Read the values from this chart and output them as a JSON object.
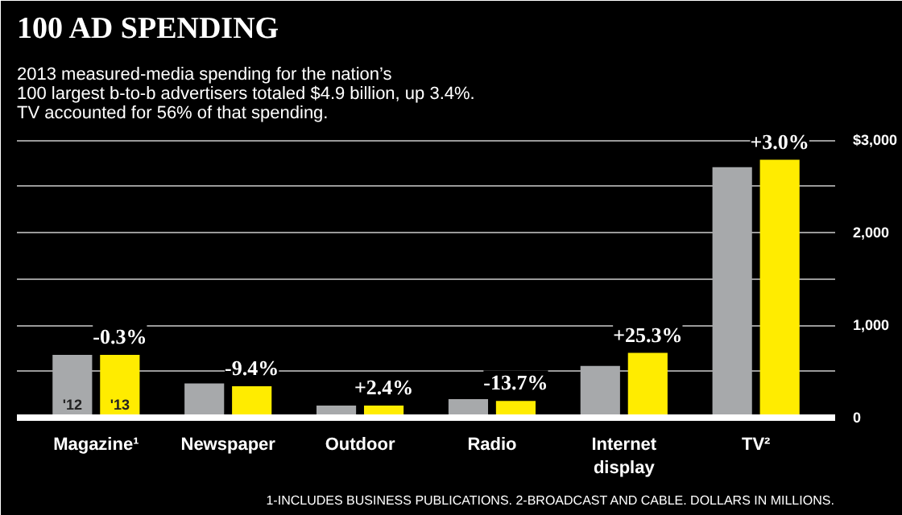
{
  "chart_data": {
    "type": "bar",
    "title": "100 AD SPENDING",
    "subtitle": "2013 measured-media spending for the nation’s\n100 largest b-to-b advertisers totaled $4.9 billion, up 3.4%.\nTV accounted for 56% of that spending.",
    "categories": [
      "Magazine¹",
      "Newspaper",
      "Outdoor",
      "Radio",
      "Internet\ndisplay",
      "TV²"
    ],
    "series": [
      {
        "name": "'12",
        "color": "#a7a9ab",
        "values": [
          680,
          370,
          130,
          200,
          560,
          2710
        ]
      },
      {
        "name": "'13",
        "color": "#ffec00",
        "values": [
          680,
          340,
          130,
          180,
          700,
          2790
        ]
      }
    ],
    "ylim": [
      0,
      3100
    ],
    "yticks": [
      0,
      {
        "value": 500,
        "label": null
      },
      {
        "value": 1000,
        "label": "1,000"
      },
      {
        "value": 1500,
        "label": null
      },
      {
        "value": 2000,
        "label": "2,000"
      },
      {
        "value": 2500,
        "label": null
      },
      {
        "value": 3000,
        "label": "$3,000"
      }
    ],
    "grid": "y",
    "annotations": [
      {
        "text": "-0.3%",
        "x": "Magazine¹",
        "y": 680
      },
      {
        "text": "-9.4%",
        "x": "Newspaper",
        "y": 340
      },
      {
        "text": "+2.4%",
        "x": "Outdoor",
        "y": 130
      },
      {
        "text": "-13.7%",
        "x": "Radio",
        "y": 180
      },
      {
        "text": "+25.3%",
        "x": "Internet\ndisplay",
        "y": 700
      },
      {
        "text": "+3.0%",
        "x": "TV²",
        "y": 2790
      },
      "1-INCLUDES BUSINESS PUBLICATIONS. 2-BROADCAST AND CABLE. DOLLARS IN MILLIONS."
    ]
  }
}
